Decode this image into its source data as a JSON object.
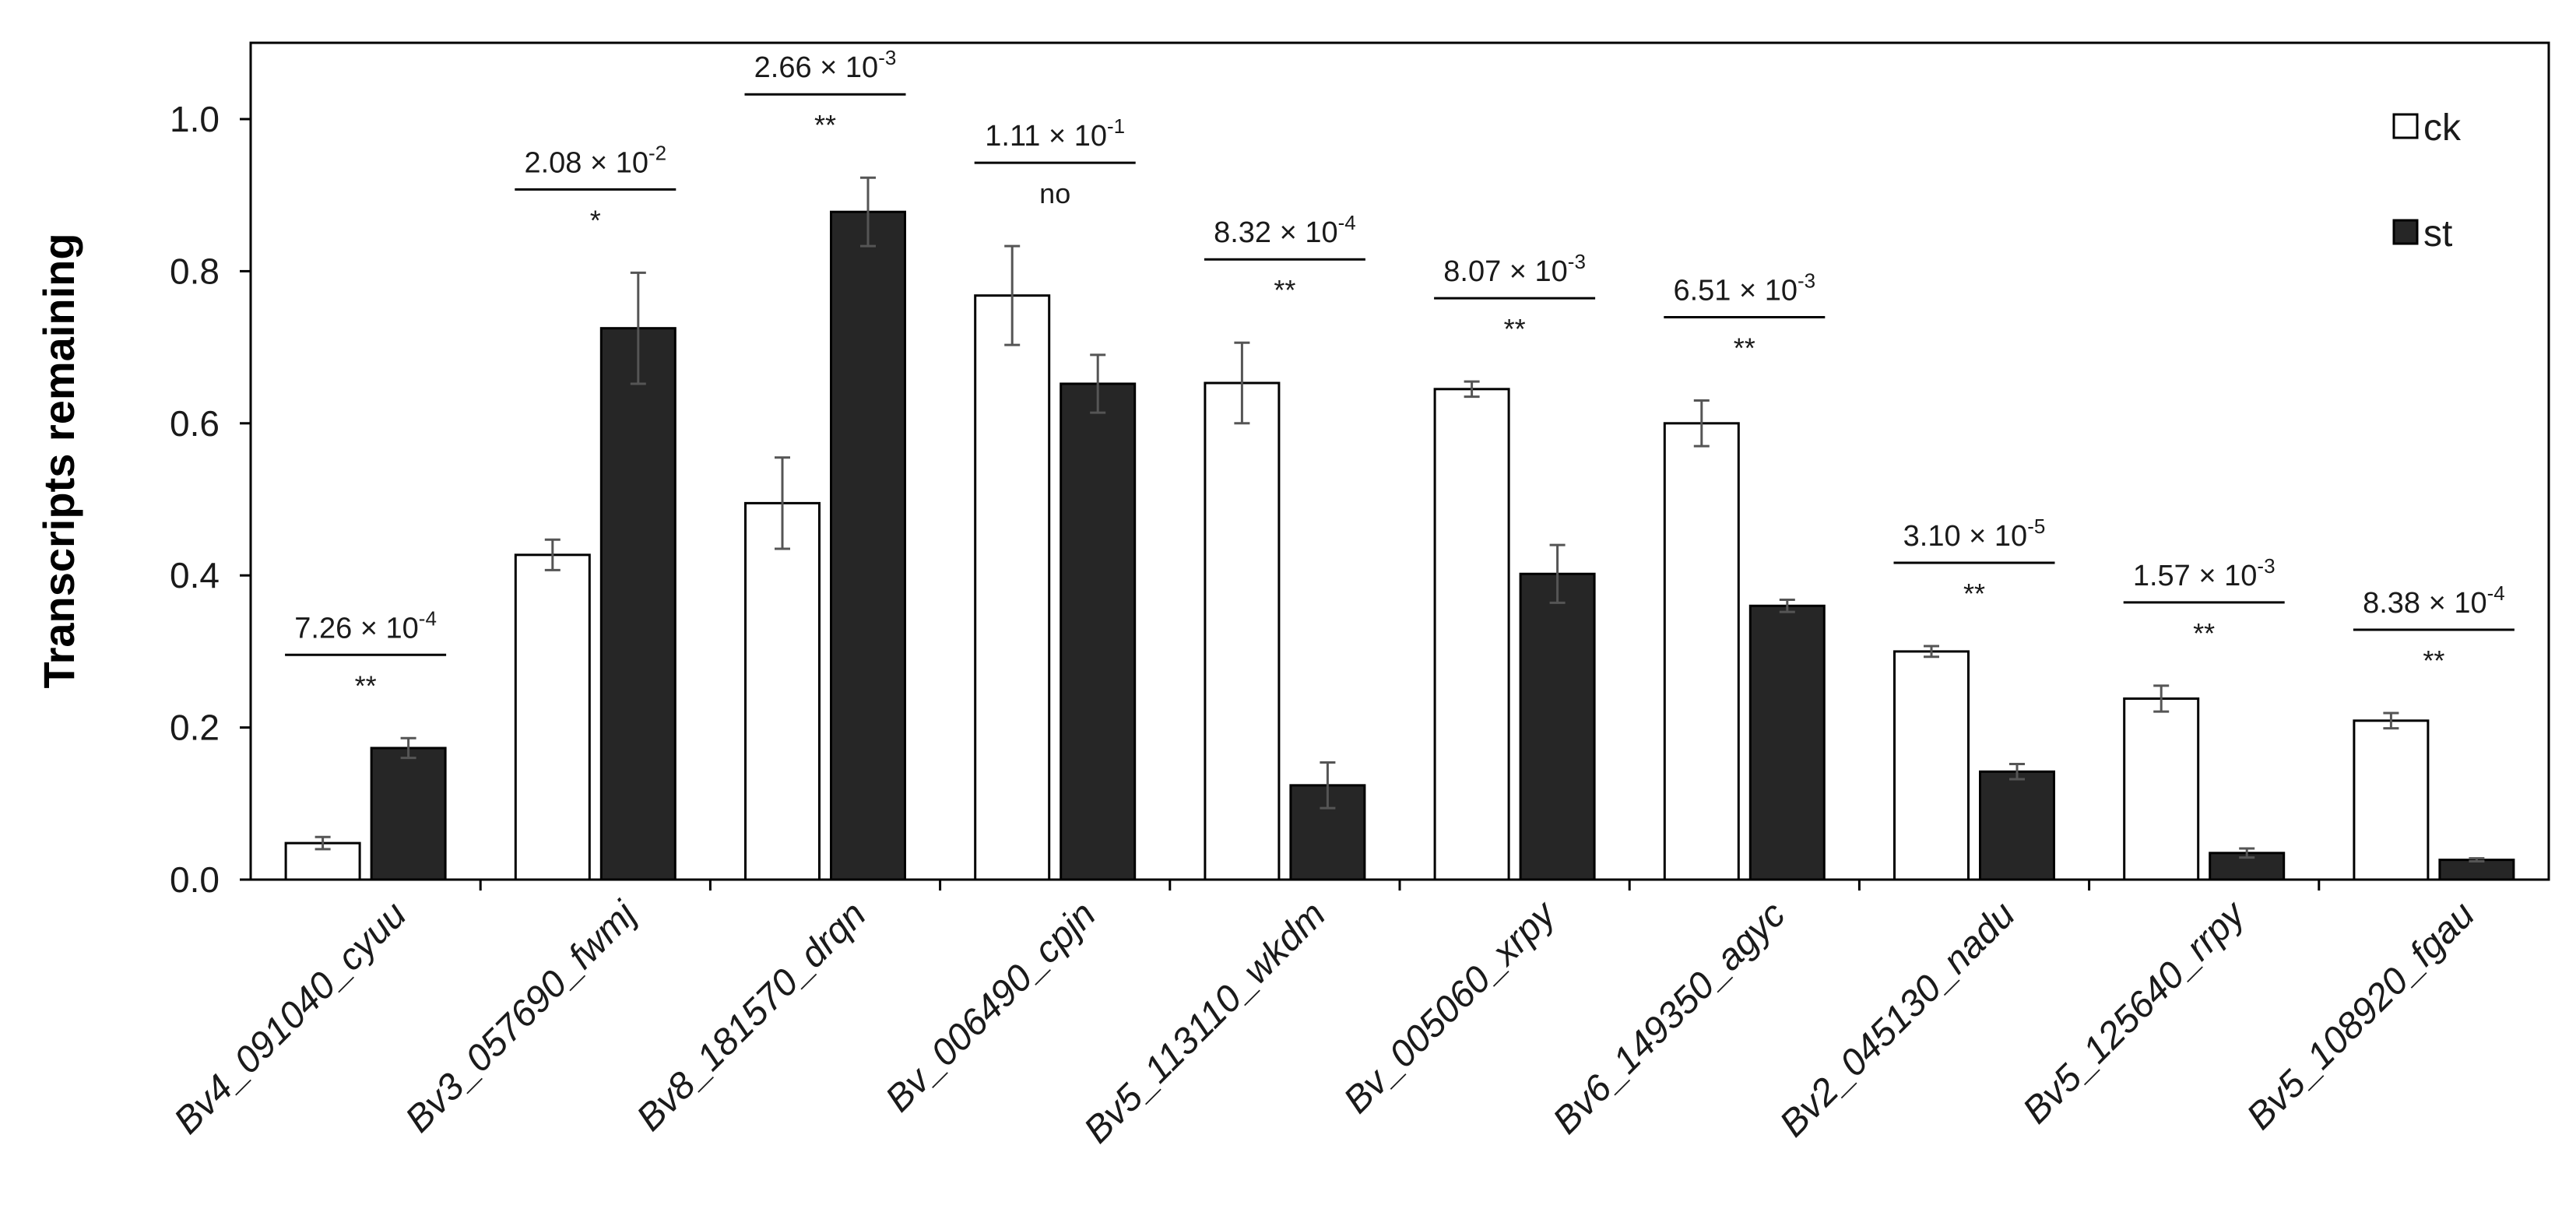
{
  "chart_data": {
    "type": "bar",
    "title": "",
    "xlabel": "",
    "ylabel": "Transcripts remaining",
    "ylim": [
      0,
      1.1
    ],
    "yticks": [
      "0.0",
      "0.2",
      "0.4",
      "0.6",
      "0.8",
      "1.0"
    ],
    "grid": false,
    "legend_position": "top-right",
    "categories": [
      "Bv4_091040_cyuu",
      "Bv3_057690_fwmj",
      "Bv8_181570_drqn",
      "Bv_006490_cpjn",
      "Bv5_113110_wkdm",
      "Bv_005060_xrpy",
      "Bv6_149350_agyc",
      "Bv2_045130_nadu",
      "Bv5_125640_rrpy",
      "Bv5_108920_fgau"
    ],
    "series": [
      {
        "name": "ck",
        "color": "#ffffff",
        "values": [
          0.048,
          0.427,
          0.495,
          0.768,
          0.653,
          0.645,
          0.6,
          0.3,
          0.238,
          0.209
        ],
        "errors": [
          0.008,
          0.02,
          0.06,
          0.065,
          0.053,
          0.01,
          0.03,
          0.007,
          0.017,
          0.01
        ]
      },
      {
        "name": "st",
        "color": "#262626",
        "values": [
          0.173,
          0.725,
          0.878,
          0.652,
          0.124,
          0.402,
          0.36,
          0.142,
          0.035,
          0.026
        ],
        "errors": [
          0.013,
          0.073,
          0.045,
          0.038,
          0.03,
          0.038,
          0.008,
          0.01,
          0.006,
          0.002
        ]
      }
    ],
    "annotations": [
      {
        "mantissa": "7.26 × 10",
        "exponent": "-4",
        "sig": "**"
      },
      {
        "mantissa": "2.08 × 10",
        "exponent": "-2",
        "sig": "*"
      },
      {
        "mantissa": "2.66 × 10",
        "exponent": "-3",
        "sig": "**"
      },
      {
        "mantissa": "1.11 × 10",
        "exponent": "-1",
        "sig": "no"
      },
      {
        "mantissa": "8.32 × 10",
        "exponent": "-4",
        "sig": "**"
      },
      {
        "mantissa": "8.07 × 10",
        "exponent": "-3",
        "sig": "**"
      },
      {
        "mantissa": "6.51 × 10",
        "exponent": "-3",
        "sig": "**"
      },
      {
        "mantissa": "3.10 × 10",
        "exponent": "-5",
        "sig": "**"
      },
      {
        "mantissa": "1.57 × 10",
        "exponent": "-3",
        "sig": "**"
      },
      {
        "mantissa": "8.38 × 10",
        "exponent": "-4",
        "sig": "**"
      }
    ]
  }
}
